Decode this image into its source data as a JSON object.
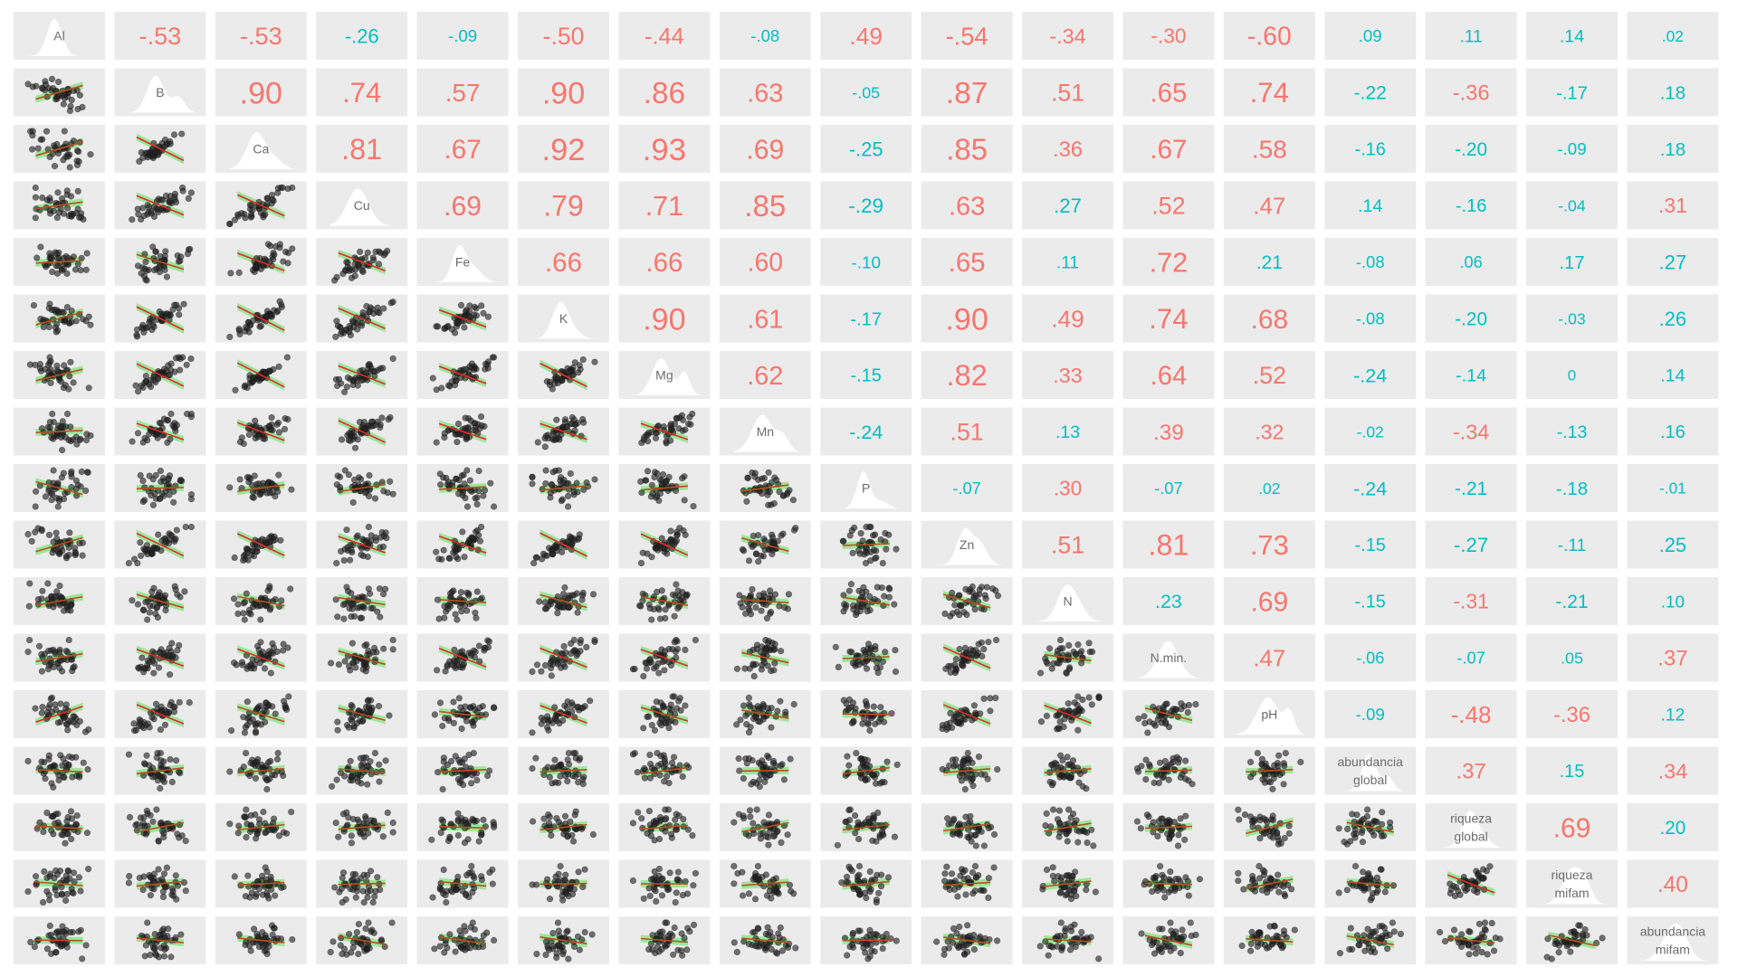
{
  "chart_data": {
    "type": "scatter",
    "subtype": "pairs-correlation-matrix",
    "variables": [
      "Al",
      "B",
      "Ca",
      "Cu",
      "Fe",
      "K",
      "Mg",
      "Mn",
      "P",
      "Zn",
      "N",
      "N.min.",
      "pH",
      "abundancia global",
      "riqueza global",
      "riqueza mifam",
      "abundancia mifam"
    ],
    "diagonal_labels": [
      [
        "Al"
      ],
      [
        "B"
      ],
      [
        "Ca"
      ],
      [
        "Cu"
      ],
      [
        "Fe"
      ],
      [
        "K"
      ],
      [
        "Mg"
      ],
      [
        "Mn"
      ],
      [
        "P"
      ],
      [
        "Zn"
      ],
      [
        "N"
      ],
      [
        "N.min."
      ],
      [
        "pH"
      ],
      [
        "abundancia",
        "global"
      ],
      [
        "riqueza",
        "global"
      ],
      [
        "riqueza",
        "mifam"
      ],
      [
        "abundancia",
        "mifam"
      ]
    ],
    "correlations": [
      [
        1,
        -0.53,
        -0.53,
        -0.26,
        -0.09,
        -0.5,
        -0.44,
        -0.08,
        0.49,
        -0.54,
        -0.34,
        -0.3,
        -0.6,
        0.09,
        0.11,
        0.14,
        0.02
      ],
      [
        -0.53,
        1,
        0.9,
        0.74,
        0.57,
        0.9,
        0.86,
        0.63,
        -0.05,
        0.87,
        0.51,
        0.65,
        0.74,
        -0.22,
        -0.36,
        -0.17,
        0.18
      ],
      [
        -0.53,
        0.9,
        1,
        0.81,
        0.67,
        0.92,
        0.93,
        0.69,
        -0.25,
        0.85,
        0.36,
        0.67,
        0.58,
        -0.16,
        -0.2,
        -0.09,
        0.18
      ],
      [
        -0.26,
        0.74,
        0.81,
        1,
        0.69,
        0.79,
        0.71,
        0.85,
        -0.29,
        0.63,
        0.27,
        0.52,
        0.47,
        0.14,
        -0.16,
        -0.04,
        0.31
      ],
      [
        -0.09,
        0.57,
        0.67,
        0.69,
        1,
        0.66,
        0.66,
        0.6,
        -0.1,
        0.65,
        0.11,
        0.72,
        0.21,
        -0.08,
        0.06,
        0.17,
        0.27
      ],
      [
        -0.5,
        0.9,
        0.92,
        0.79,
        0.66,
        1,
        0.9,
        0.61,
        -0.17,
        0.9,
        0.49,
        0.74,
        0.68,
        -0.08,
        -0.2,
        -0.03,
        0.26
      ],
      [
        -0.44,
        0.86,
        0.93,
        0.71,
        0.66,
        0.9,
        1,
        0.62,
        -0.15,
        0.82,
        0.33,
        0.64,
        0.52,
        -0.24,
        -0.14,
        0,
        0.14
      ],
      [
        -0.08,
        0.63,
        0.69,
        0.85,
        0.6,
        0.61,
        0.62,
        1,
        -0.24,
        0.51,
        0.13,
        0.39,
        0.32,
        -0.02,
        -0.34,
        -0.13,
        0.16
      ],
      [
        0.49,
        -0.05,
        -0.25,
        -0.29,
        -0.1,
        -0.17,
        -0.15,
        -0.24,
        1,
        -0.07,
        0.3,
        -0.07,
        0.02,
        -0.24,
        -0.21,
        -0.18,
        -0.01
      ],
      [
        -0.54,
        0.87,
        0.85,
        0.63,
        0.65,
        0.9,
        0.82,
        0.51,
        -0.07,
        1,
        0.51,
        0.81,
        0.73,
        -0.15,
        -0.27,
        -0.11,
        0.25
      ],
      [
        -0.34,
        0.51,
        0.36,
        0.27,
        0.11,
        0.49,
        0.33,
        0.13,
        0.3,
        0.51,
        1,
        0.23,
        0.69,
        -0.15,
        -0.31,
        -0.21,
        0.1
      ],
      [
        -0.3,
        0.65,
        0.67,
        0.52,
        0.72,
        0.74,
        0.64,
        0.39,
        -0.07,
        0.81,
        0.23,
        1,
        0.47,
        -0.06,
        -0.07,
        0.05,
        0.37
      ],
      [
        -0.6,
        0.74,
        0.58,
        0.47,
        0.21,
        0.68,
        0.52,
        0.32,
        0.02,
        0.73,
        0.69,
        0.47,
        1,
        -0.09,
        -0.48,
        -0.36,
        0.12
      ],
      [
        0.09,
        -0.22,
        -0.16,
        0.14,
        -0.08,
        -0.08,
        -0.24,
        -0.02,
        -0.24,
        -0.15,
        -0.15,
        -0.06,
        -0.09,
        1,
        0.37,
        0.15,
        0.34
      ],
      [
        0.11,
        -0.36,
        -0.2,
        -0.16,
        0.06,
        -0.2,
        -0.14,
        -0.34,
        -0.21,
        -0.27,
        -0.31,
        -0.07,
        -0.48,
        0.37,
        1,
        0.69,
        0.2
      ],
      [
        0.14,
        -0.17,
        -0.09,
        -0.04,
        0.17,
        -0.03,
        0,
        -0.13,
        -0.18,
        -0.11,
        -0.21,
        0.05,
        -0.36,
        0.15,
        0.69,
        1,
        0.4
      ],
      [
        0.02,
        0.18,
        0.18,
        0.31,
        0.27,
        0.26,
        0.14,
        0.16,
        -0.01,
        0.25,
        0.1,
        0.37,
        0.12,
        0.34,
        0.2,
        0.4,
        1
      ]
    ],
    "upper": "correlation coefficient, text size scales with |r|",
    "lower": "scatterplot with linear fit",
    "diagonal": "density",
    "colors": {
      "panel": "#ebebeb",
      "positive_strong": "#f8766d",
      "weak": "#00bfc4",
      "points": "#222222",
      "fit_line": "#e8262a",
      "fit_band": "#39e03c"
    },
    "grid": false
  }
}
